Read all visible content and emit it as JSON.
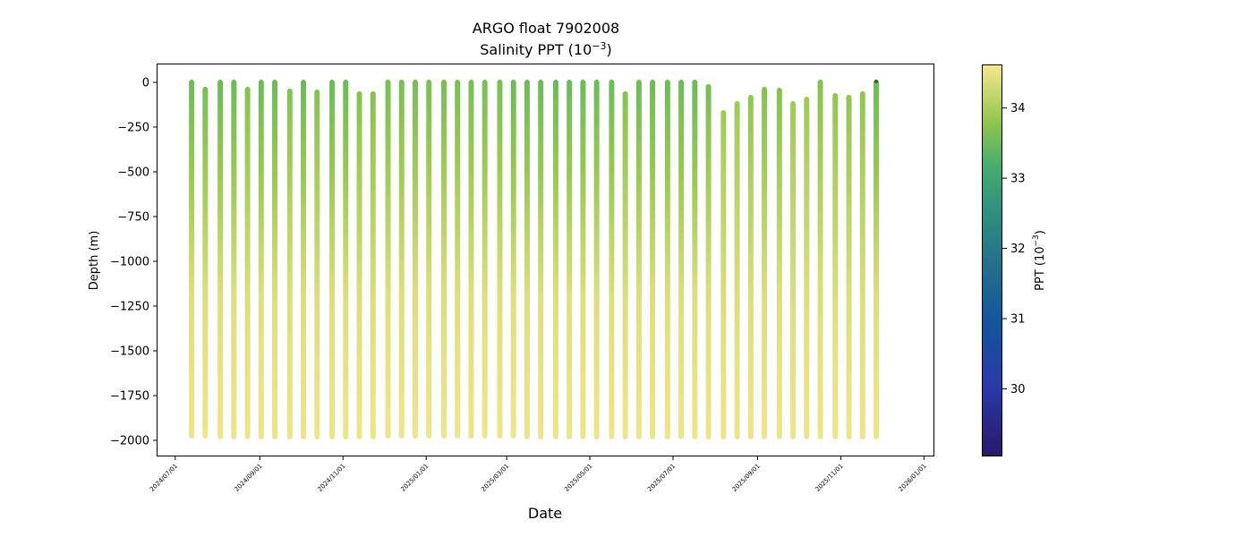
{
  "chart_data": {
    "type": "scatter",
    "title": "ARGO float 7902008",
    "subtitle": "Salinity PPT (10",
    "subtitle_exp": "−3",
    "subtitle_end": ")",
    "xlabel": "Date",
    "ylabel": "Depth (m)",
    "colorbar_label": "PPT (10",
    "colorbar_label_exp": "−3",
    "colorbar_label_end": ")",
    "colormap": "haline",
    "colorbar_range": [
      29.05,
      34.62
    ],
    "colorbar_ticks": [
      30,
      31,
      32,
      33,
      34
    ],
    "ylim": [
      -2085,
      100
    ],
    "yticks": [
      0,
      -250,
      -500,
      -750,
      -1000,
      -1250,
      -1500,
      -1750,
      -2000
    ],
    "xlim": [
      "2024-06-18",
      "2026-01-08"
    ],
    "xticks": [
      "2024/07/01",
      "2024/09/01",
      "2024/11/01",
      "2025/01/01",
      "2025/03/01",
      "2025/05/01",
      "2025/07/01",
      "2025/09/01",
      "2025/11/01",
      "2026/01/01"
    ],
    "profiles": [
      {
        "date": "2024-07-13",
        "top": 0,
        "bottom": -1975,
        "top_sal": 33.5,
        "bottom_sal": 34.55
      },
      {
        "date": "2024-07-23",
        "top": -40,
        "bottom": -1975,
        "top_sal": 33.6,
        "bottom_sal": 34.55
      },
      {
        "date": "2024-08-03",
        "top": 0,
        "bottom": -1980,
        "top_sal": 33.5,
        "bottom_sal": 34.55
      },
      {
        "date": "2024-08-13",
        "top": 0,
        "bottom": -1980,
        "top_sal": 33.5,
        "bottom_sal": 34.55
      },
      {
        "date": "2024-08-23",
        "top": -40,
        "bottom": -1980,
        "top_sal": 33.7,
        "bottom_sal": 34.55
      },
      {
        "date": "2024-09-02",
        "top": 0,
        "bottom": -1980,
        "top_sal": 33.5,
        "bottom_sal": 34.55
      },
      {
        "date": "2024-09-12",
        "top": 0,
        "bottom": -1980,
        "top_sal": 33.5,
        "bottom_sal": 34.55
      },
      {
        "date": "2024-09-23",
        "top": -50,
        "bottom": -1980,
        "top_sal": 33.7,
        "bottom_sal": 34.55
      },
      {
        "date": "2024-10-03",
        "top": 0,
        "bottom": -1980,
        "top_sal": 33.5,
        "bottom_sal": 34.55
      },
      {
        "date": "2024-10-13",
        "top": -55,
        "bottom": -1980,
        "top_sal": 33.7,
        "bottom_sal": 34.55
      },
      {
        "date": "2024-10-24",
        "top": 0,
        "bottom": -1980,
        "top_sal": 33.5,
        "bottom_sal": 34.55
      },
      {
        "date": "2024-11-03",
        "top": 0,
        "bottom": -1980,
        "top_sal": 33.5,
        "bottom_sal": 34.55
      },
      {
        "date": "2024-11-13",
        "top": -65,
        "bottom": -1980,
        "top_sal": 33.7,
        "bottom_sal": 34.55
      },
      {
        "date": "2024-11-23",
        "top": -65,
        "bottom": -1980,
        "top_sal": 33.7,
        "bottom_sal": 34.55
      },
      {
        "date": "2024-12-04",
        "top": 0,
        "bottom": -1975,
        "top_sal": 33.6,
        "bottom_sal": 34.55
      },
      {
        "date": "2024-12-14",
        "top": 0,
        "bottom": -1975,
        "top_sal": 33.6,
        "bottom_sal": 34.55
      },
      {
        "date": "2024-12-24",
        "top": 0,
        "bottom": -1975,
        "top_sal": 33.6,
        "bottom_sal": 34.55
      },
      {
        "date": "2025-01-03",
        "top": 0,
        "bottom": -1975,
        "top_sal": 33.6,
        "bottom_sal": 34.55
      },
      {
        "date": "2025-01-14",
        "top": 0,
        "bottom": -1975,
        "top_sal": 33.6,
        "bottom_sal": 34.55
      },
      {
        "date": "2025-01-24",
        "top": 0,
        "bottom": -1975,
        "top_sal": 33.6,
        "bottom_sal": 34.55
      },
      {
        "date": "2025-02-03",
        "top": 0,
        "bottom": -1975,
        "top_sal": 33.6,
        "bottom_sal": 34.55
      },
      {
        "date": "2025-02-13",
        "top": 0,
        "bottom": -1975,
        "top_sal": 33.6,
        "bottom_sal": 34.55
      },
      {
        "date": "2025-02-24",
        "top": 0,
        "bottom": -1975,
        "top_sal": 33.6,
        "bottom_sal": 34.55
      },
      {
        "date": "2025-03-06",
        "top": 0,
        "bottom": -1975,
        "top_sal": 33.5,
        "bottom_sal": 34.55
      },
      {
        "date": "2025-03-16",
        "top": 0,
        "bottom": -1980,
        "top_sal": 33.5,
        "bottom_sal": 34.55
      },
      {
        "date": "2025-03-26",
        "top": 0,
        "bottom": -1980,
        "top_sal": 33.5,
        "bottom_sal": 34.55
      },
      {
        "date": "2025-04-06",
        "top": 0,
        "bottom": -1980,
        "top_sal": 33.5,
        "bottom_sal": 34.55
      },
      {
        "date": "2025-04-16",
        "top": 0,
        "bottom": -1980,
        "top_sal": 33.5,
        "bottom_sal": 34.55
      },
      {
        "date": "2025-04-26",
        "top": 0,
        "bottom": -1980,
        "top_sal": 33.5,
        "bottom_sal": 34.55
      },
      {
        "date": "2025-05-06",
        "top": 0,
        "bottom": -1980,
        "top_sal": 33.5,
        "bottom_sal": 34.55
      },
      {
        "date": "2025-05-17",
        "top": 0,
        "bottom": -1980,
        "top_sal": 33.5,
        "bottom_sal": 34.55
      },
      {
        "date": "2025-05-27",
        "top": -65,
        "bottom": -1980,
        "top_sal": 33.7,
        "bottom_sal": 34.55
      },
      {
        "date": "2025-06-06",
        "top": 0,
        "bottom": -1980,
        "top_sal": 33.5,
        "bottom_sal": 34.55
      },
      {
        "date": "2025-06-16",
        "top": 0,
        "bottom": -1980,
        "top_sal": 33.5,
        "bottom_sal": 34.55
      },
      {
        "date": "2025-06-27",
        "top": 0,
        "bottom": -1980,
        "top_sal": 33.5,
        "bottom_sal": 34.55
      },
      {
        "date": "2025-07-07",
        "top": 0,
        "bottom": -1980,
        "top_sal": 33.5,
        "bottom_sal": 34.55
      },
      {
        "date": "2025-07-17",
        "top": 0,
        "bottom": -1980,
        "top_sal": 33.5,
        "bottom_sal": 34.55
      },
      {
        "date": "2025-07-27",
        "top": -25,
        "bottom": -1980,
        "top_sal": 33.6,
        "bottom_sal": 34.55
      },
      {
        "date": "2025-08-07",
        "top": -170,
        "bottom": -1980,
        "top_sal": 33.9,
        "bottom_sal": 34.55
      },
      {
        "date": "2025-08-17",
        "top": -120,
        "bottom": -1980,
        "top_sal": 33.9,
        "bottom_sal": 34.55
      },
      {
        "date": "2025-08-27",
        "top": -85,
        "bottom": -1980,
        "top_sal": 33.8,
        "bottom_sal": 34.55
      },
      {
        "date": "2025-09-06",
        "top": -40,
        "bottom": -1980,
        "top_sal": 33.7,
        "bottom_sal": 34.55
      },
      {
        "date": "2025-09-17",
        "top": -45,
        "bottom": -1980,
        "top_sal": 33.7,
        "bottom_sal": 34.55
      },
      {
        "date": "2025-09-27",
        "top": -120,
        "bottom": -1980,
        "top_sal": 33.9,
        "bottom_sal": 34.55
      },
      {
        "date": "2025-10-07",
        "top": -95,
        "bottom": -1980,
        "top_sal": 33.9,
        "bottom_sal": 34.55
      },
      {
        "date": "2025-10-17",
        "top": 0,
        "bottom": -1980,
        "top_sal": 33.7,
        "bottom_sal": 34.55
      },
      {
        "date": "2025-10-28",
        "top": -75,
        "bottom": -1980,
        "top_sal": 33.8,
        "bottom_sal": 34.55
      },
      {
        "date": "2025-11-07",
        "top": -85,
        "bottom": -1980,
        "top_sal": 33.8,
        "bottom_sal": 34.55
      },
      {
        "date": "2025-11-17",
        "top": -65,
        "bottom": -1980,
        "top_sal": 33.8,
        "bottom_sal": 34.55
      },
      {
        "date": "2025-11-27",
        "top": 0,
        "bottom": -1980,
        "top_sal": 33.5,
        "bottom_sal": 34.55
      }
    ]
  }
}
